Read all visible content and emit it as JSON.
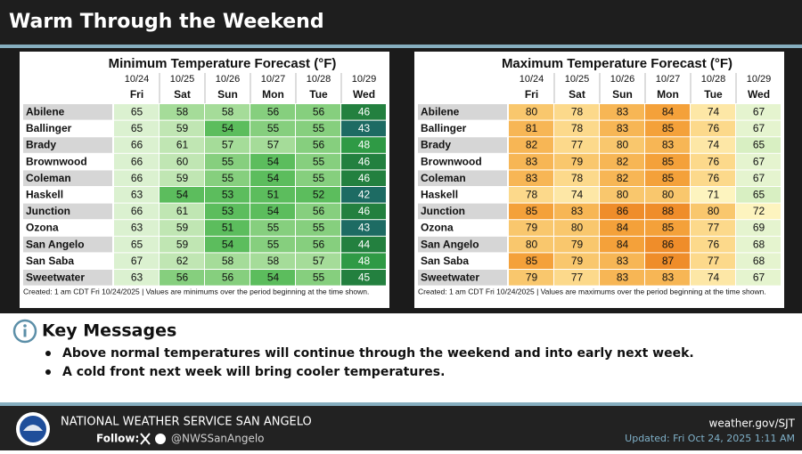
{
  "header": {
    "title": "Warm Through the Weekend"
  },
  "tables": [
    {
      "title": "Minimum Temperature Forecast (°F)",
      "dates": [
        "10/24",
        "10/25",
        "10/26",
        "10/27",
        "10/28",
        "10/29"
      ],
      "days": [
        "Fri",
        "Sat",
        "Sun",
        "Mon",
        "Tue",
        "Wed"
      ],
      "rows": [
        {
          "city": "Abilene",
          "values": [
            65,
            58,
            58,
            56,
            56,
            46
          ]
        },
        {
          "city": "Ballinger",
          "values": [
            65,
            59,
            54,
            55,
            55,
            43
          ]
        },
        {
          "city": "Brady",
          "values": [
            66,
            61,
            57,
            57,
            56,
            48
          ]
        },
        {
          "city": "Brownwood",
          "values": [
            66,
            60,
            55,
            54,
            55,
            46
          ]
        },
        {
          "city": "Coleman",
          "values": [
            66,
            59,
            55,
            54,
            55,
            46
          ]
        },
        {
          "city": "Haskell",
          "values": [
            63,
            54,
            53,
            51,
            52,
            42
          ]
        },
        {
          "city": "Junction",
          "values": [
            66,
            61,
            53,
            54,
            56,
            46
          ]
        },
        {
          "city": "Ozona",
          "values": [
            63,
            59,
            51,
            55,
            55,
            43
          ]
        },
        {
          "city": "San Angelo",
          "values": [
            65,
            59,
            54,
            55,
            56,
            44
          ]
        },
        {
          "city": "San Saba",
          "values": [
            67,
            62,
            58,
            58,
            57,
            48
          ]
        },
        {
          "city": "Sweetwater",
          "values": [
            63,
            56,
            56,
            54,
            55,
            45
          ]
        }
      ],
      "note": "Created: 1 am CDT Fri 10/24/2025  |  Values are minimums over the period beginning at the time shown."
    },
    {
      "title": "Maximum Temperature Forecast (°F)",
      "dates": [
        "10/24",
        "10/25",
        "10/26",
        "10/27",
        "10/28",
        "10/29"
      ],
      "days": [
        "Fri",
        "Sat",
        "Sun",
        "Mon",
        "Tue",
        "Wed"
      ],
      "rows": [
        {
          "city": "Abilene",
          "values": [
            80,
            78,
            83,
            84,
            74,
            67
          ]
        },
        {
          "city": "Ballinger",
          "values": [
            81,
            78,
            83,
            85,
            76,
            67
          ]
        },
        {
          "city": "Brady",
          "values": [
            82,
            77,
            80,
            83,
            74,
            65
          ]
        },
        {
          "city": "Brownwood",
          "values": [
            83,
            79,
            82,
            85,
            76,
            67
          ]
        },
        {
          "city": "Coleman",
          "values": [
            83,
            78,
            82,
            85,
            76,
            67
          ]
        },
        {
          "city": "Haskell",
          "values": [
            78,
            74,
            80,
            80,
            71,
            65
          ]
        },
        {
          "city": "Junction",
          "values": [
            85,
            83,
            86,
            88,
            80,
            72
          ]
        },
        {
          "city": "Ozona",
          "values": [
            79,
            80,
            84,
            85,
            77,
            69
          ]
        },
        {
          "city": "San Angelo",
          "values": [
            80,
            79,
            84,
            86,
            76,
            68
          ]
        },
        {
          "city": "San Saba",
          "values": [
            85,
            79,
            83,
            87,
            77,
            68
          ]
        },
        {
          "city": "Sweetwater",
          "values": [
            79,
            77,
            83,
            83,
            74,
            67
          ]
        }
      ],
      "note": "Created: 1 am CDT Fri 10/24/2025  |  Values are maximums over the period beginning at the time shown."
    }
  ],
  "key_messages": {
    "title": "Key Messages",
    "items": [
      "Above normal temperatures will continue through the weekend and into early next week.",
      "A cold front next week will bring cooler temperatures."
    ]
  },
  "footer": {
    "office": "NATIONAL WEATHER SERVICE SAN ANGELO",
    "follow": "Follow:",
    "handle": "@NWSSanAngelo",
    "website": "weather.gov/SJT",
    "updated": "Updated: Fri Oct 24, 2025 1:11 AM"
  }
}
